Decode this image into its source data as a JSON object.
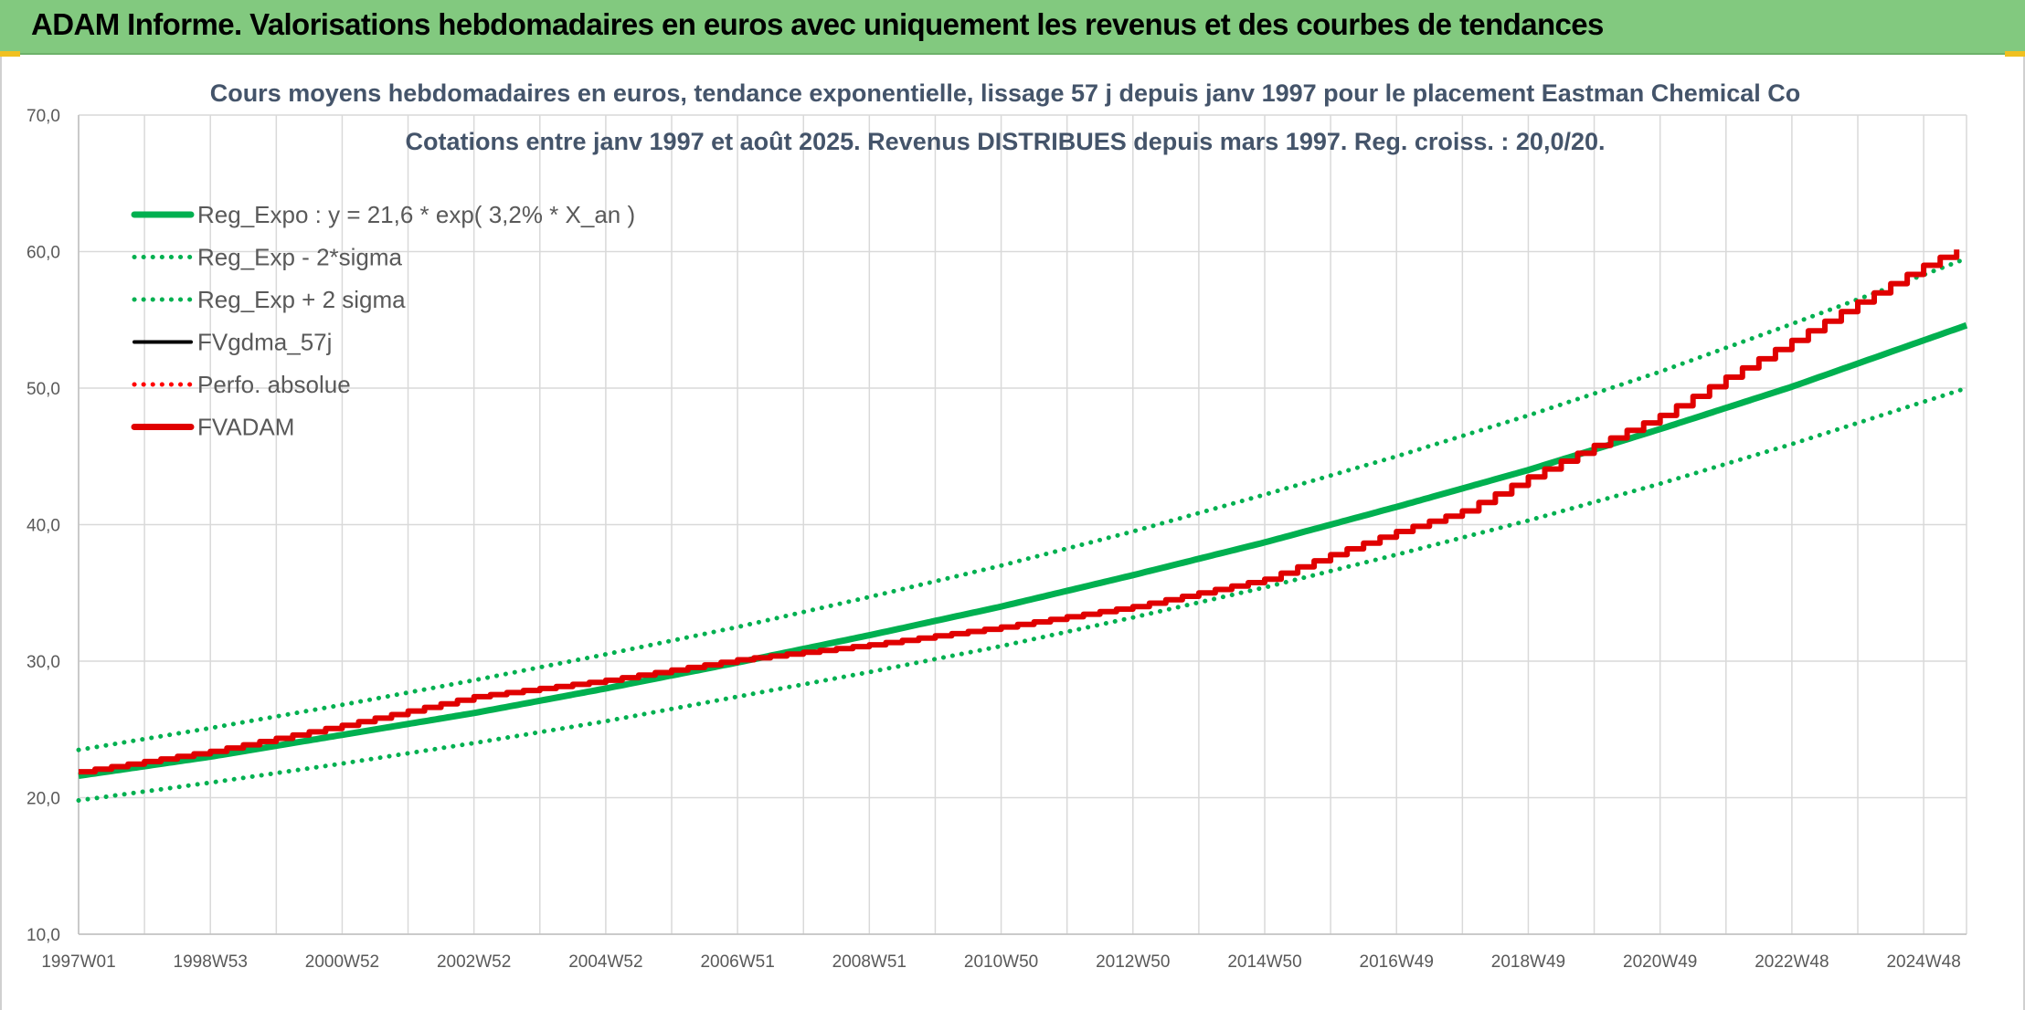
{
  "banner": {
    "title": "ADAM Informe. Valorisations hebdomadaires en euros avec uniquement les revenus et des courbes de tendances"
  },
  "colors": {
    "banner_bg": "#82c97f",
    "reg_green": "#00b050",
    "fvadam_red": "#e00000",
    "perfo_red": "#ff0000",
    "fvgdma_black": "#000000",
    "grid": "#d9d9d9"
  },
  "chart_data": {
    "type": "line",
    "title": "Cours moyens hebdomadaires en euros, tendance exponentielle, lissage 57 j depuis janv 1997 pour le placement Eastman Chemical Co",
    "subtitle": "Cotations entre janv 1997 et août 2025. Revenus DISTRIBUES depuis mars 1997. Reg. croiss. : 20,0/20.",
    "xlabel": "",
    "ylabel": "",
    "ylim": [
      10,
      70
    ],
    "yticks": [
      "10,0",
      "20,0",
      "30,0",
      "40,0",
      "50,0",
      "60,0",
      "70,0"
    ],
    "xlim": [
      1997.0,
      2025.65
    ],
    "xtick_labels": [
      "1997W01",
      "1998W53",
      "2000W52",
      "2002W52",
      "2004W52",
      "2006W51",
      "2008W51",
      "2010W50",
      "2012W50",
      "2014W50",
      "2016W49",
      "2018W49",
      "2020W49",
      "2022W48",
      "2024W48"
    ],
    "xtick_years": [
      1997.0,
      1999.0,
      2001.0,
      2003.0,
      2005.0,
      2007.0,
      2009.0,
      2011.0,
      2013.0,
      2015.0,
      2017.0,
      2019.0,
      2021.0,
      2023.0,
      2025.0
    ],
    "grid": true,
    "legend_position": "top-left",
    "series": [
      {
        "name": "Reg_Expo : y = 21,6 * exp( 3,2% *  X_an )",
        "style": "solid-thick",
        "color": "#00b050",
        "x": [
          1997,
          1999,
          2001,
          2003,
          2005,
          2007,
          2009,
          2011,
          2013,
          2015,
          2017,
          2019,
          2021,
          2023,
          2025,
          2025.65
        ],
        "y": [
          21.6,
          23.0,
          24.6,
          26.2,
          28.0,
          29.9,
          31.9,
          34.0,
          36.3,
          38.7,
          41.3,
          44.0,
          47.0,
          50.1,
          53.5,
          54.6
        ]
      },
      {
        "name": "Reg_Exp - 2*sigma",
        "style": "dotted",
        "color": "#00b050",
        "x": [
          1997,
          1999,
          2001,
          2003,
          2005,
          2007,
          2009,
          2011,
          2013,
          2015,
          2017,
          2019,
          2021,
          2023,
          2025,
          2025.65
        ],
        "y": [
          19.8,
          21.1,
          22.5,
          24.0,
          25.6,
          27.4,
          29.2,
          31.1,
          33.2,
          35.4,
          37.8,
          40.3,
          43.0,
          45.9,
          49.0,
          50.0
        ]
      },
      {
        "name": "Reg_Exp + 2 sigma",
        "style": "dotted",
        "color": "#00b050",
        "x": [
          1997,
          1999,
          2001,
          2003,
          2005,
          2007,
          2009,
          2011,
          2013,
          2015,
          2017,
          2019,
          2021,
          2023,
          2025,
          2025.65
        ],
        "y": [
          23.5,
          25.1,
          26.8,
          28.6,
          30.5,
          32.5,
          34.7,
          37.0,
          39.5,
          42.2,
          45.0,
          48.0,
          51.2,
          54.7,
          58.3,
          59.5
        ]
      },
      {
        "name": "FVgdma_57j",
        "style": "solid",
        "color": "#000000",
        "x": [],
        "y": []
      },
      {
        "name": "Perfo. absolue",
        "style": "dotted",
        "color": "#ff0000",
        "x": [],
        "y": []
      },
      {
        "name": "FVADAM",
        "style": "solid-thick-stepped",
        "color": "#e00000",
        "x": [
          1997,
          1999,
          2001,
          2003,
          2005,
          2007,
          2009,
          2011,
          2013,
          2015,
          2016,
          2017,
          2018,
          2019,
          2020,
          2021,
          2022,
          2023,
          2024,
          2025,
          2025.65
        ],
        "y": [
          21.9,
          23.4,
          25.3,
          27.4,
          28.6,
          30.1,
          31.2,
          32.5,
          34.0,
          36.0,
          37.8,
          39.5,
          41.0,
          43.5,
          45.8,
          48.0,
          50.8,
          53.5,
          56.3,
          59.0,
          60.5
        ]
      }
    ]
  }
}
